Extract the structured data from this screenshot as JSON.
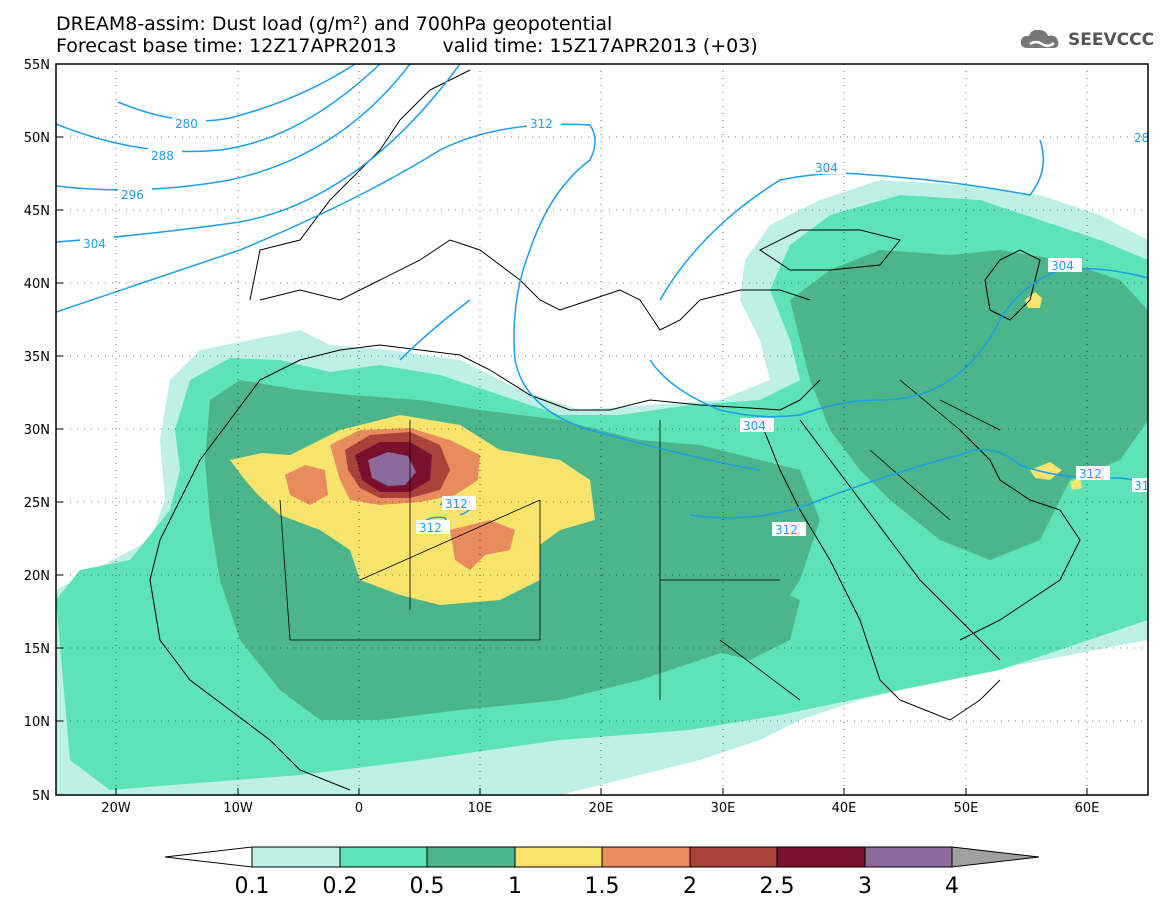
{
  "header": {
    "title_line1": "DREAM8-assim: Dust load (g/m²) and 700hPa geopotential",
    "base_time": "Forecast base time: 12Z17APR2013",
    "valid_time": "valid time: 15Z17APR2013 (+03)"
  },
  "logo": {
    "text": "SEEVCCC",
    "icon": "cloud-icon"
  },
  "map": {
    "lon_ticks": [
      "20W",
      "10W",
      "0",
      "10E",
      "20E",
      "30E",
      "40E",
      "50E",
      "60E"
    ],
    "lat_ticks": [
      "55N",
      "50N",
      "45N",
      "40N",
      "35N",
      "30N",
      "25N",
      "20N",
      "15N",
      "10N",
      "5N"
    ],
    "contour_labels": [
      "280",
      "288",
      "296",
      "304",
      "312",
      "304",
      "304",
      "304",
      "312",
      "312",
      "312",
      "312",
      "312",
      "31",
      "28"
    ]
  },
  "legend": {
    "values": [
      "0.1",
      "0.2",
      "0.5",
      "1",
      "1.5",
      "2",
      "2.5",
      "3",
      "4"
    ],
    "colors": [
      "#ffffff",
      "#bff0e7",
      "#5ee2b8",
      "#4db58b",
      "#f7e46d",
      "#e88c5e",
      "#a9423a",
      "#7a0f2e",
      "#8c6a9c",
      "#a0a0a0"
    ]
  },
  "colors": {
    "contour": "#1aa0e8",
    "level1": "#bff0e7",
    "level2": "#5ee2b8",
    "level3": "#4db58b",
    "level4": "#f7e46d",
    "level5": "#e88c5e",
    "level6": "#a9423a",
    "level7": "#7a0f2e",
    "level8": "#8c6a9c"
  }
}
